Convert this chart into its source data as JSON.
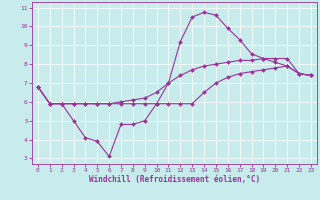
{
  "xlabel": "Windchill (Refroidissement éolien,°C)",
  "bg_color": "#c8ecec",
  "line_color": "#993399",
  "grid_color": "#ffffff",
  "spine_color": "#993399",
  "xlim": [
    -0.5,
    23.5
  ],
  "ylim": [
    2.7,
    11.3
  ],
  "yticks": [
    3,
    4,
    5,
    6,
    7,
    8,
    9,
    10,
    11
  ],
  "xticks": [
    0,
    1,
    2,
    3,
    4,
    5,
    6,
    7,
    8,
    9,
    10,
    11,
    12,
    13,
    14,
    15,
    16,
    17,
    18,
    19,
    20,
    21,
    22,
    23
  ],
  "line1_x": [
    0,
    1,
    2,
    3,
    4,
    5,
    6,
    7,
    8,
    9,
    10,
    11,
    12,
    13,
    14,
    15,
    16,
    17,
    18,
    19,
    20,
    21,
    22,
    23
  ],
  "line1_y": [
    6.8,
    5.9,
    5.9,
    5.0,
    4.1,
    3.9,
    3.1,
    4.8,
    4.8,
    5.0,
    5.9,
    7.0,
    9.2,
    10.5,
    10.75,
    10.6,
    9.9,
    9.3,
    8.55,
    8.3,
    8.1,
    7.9,
    7.5,
    7.4
  ],
  "line2_x": [
    0,
    1,
    2,
    3,
    4,
    5,
    6,
    7,
    8,
    9,
    10,
    11,
    12,
    13,
    14,
    15,
    16,
    17,
    18,
    19,
    20,
    21,
    22,
    23
  ],
  "line2_y": [
    6.8,
    5.9,
    5.9,
    5.9,
    5.9,
    5.9,
    5.9,
    6.0,
    6.1,
    6.2,
    6.5,
    7.0,
    7.4,
    7.7,
    7.9,
    8.0,
    8.1,
    8.2,
    8.2,
    8.3,
    8.3,
    8.3,
    7.5,
    7.4
  ],
  "line3_x": [
    0,
    1,
    2,
    3,
    4,
    5,
    6,
    7,
    8,
    9,
    10,
    11,
    12,
    13,
    14,
    15,
    16,
    17,
    18,
    19,
    20,
    21,
    22,
    23
  ],
  "line3_y": [
    6.8,
    5.9,
    5.9,
    5.9,
    5.9,
    5.9,
    5.9,
    5.9,
    5.9,
    5.9,
    5.9,
    5.9,
    5.9,
    5.9,
    6.5,
    7.0,
    7.3,
    7.5,
    7.6,
    7.7,
    7.8,
    7.9,
    7.5,
    7.4
  ],
  "tick_fontsize": 4.5,
  "xlabel_fontsize": 5.5,
  "marker_size": 2.0,
  "linewidth": 0.8
}
